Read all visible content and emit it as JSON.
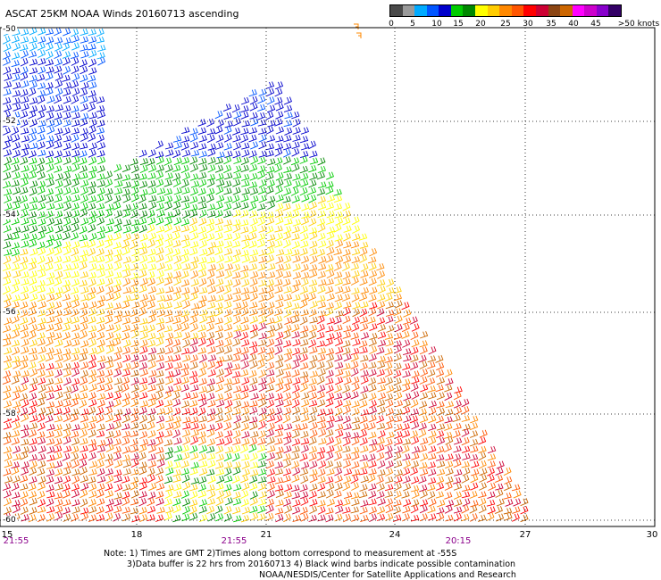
{
  "title": "ASCAT 25KM NOAA Winds 20160713 ascending",
  "colorbar": {
    "colors": [
      "#4a4a4a",
      "#9a9a9a",
      "#00aaff",
      "#0055ff",
      "#0000cc",
      "#00cc00",
      "#008800",
      "#ffff00",
      "#ffcc00",
      "#ff8800",
      "#ff5500",
      "#ff0000",
      "#cc0033",
      "#8b4513",
      "#cc6600",
      "#ff00ff",
      "#cc00cc",
      "#8800cc",
      "#330066"
    ],
    "labels": [
      "0",
      "5",
      "10",
      "15",
      "20",
      "25",
      "30",
      "35",
      "40",
      "45",
      ">50 knots"
    ]
  },
  "map": {
    "lat_labels": [
      "-50",
      "-52",
      "-54",
      "-56",
      "-58",
      "-60"
    ],
    "lon_labels": [
      "15",
      "18",
      "21",
      "24",
      "27",
      "30"
    ],
    "time_labels": [
      "21:55",
      "21:55",
      "20:15"
    ]
  },
  "notes": {
    "line1": "Note: 1) Times are GMT 2)Times along bottom correspond to measurement at -55S",
    "line2": "3)Data buffer is 22 hrs from 20160713 4) Black wind barbs indicate possible contamination",
    "line3": "NOAA/NESDIS/Center for Satellite Applications and Research"
  }
}
